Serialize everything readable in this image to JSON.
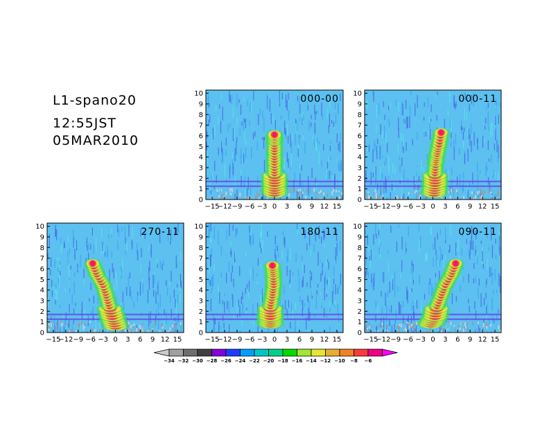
{
  "header": {
    "title": "L1-spano20",
    "time": "12:55JST",
    "date": "05MAR2010"
  },
  "chart_data": {
    "type": "heatmap",
    "x_ticks": [
      "-15",
      "-12",
      "-9",
      "-6",
      "-3",
      "0",
      "3",
      "6",
      "9",
      "12",
      "15"
    ],
    "y_ticks": [
      "0",
      "1",
      "2",
      "3",
      "4",
      "5",
      "6",
      "7",
      "8",
      "9",
      "10"
    ],
    "xlim": [
      -16.5,
      16.5
    ],
    "ylim": [
      0,
      10.3
    ],
    "grid": false,
    "panels": [
      {
        "label": "000-00",
        "plume": [
          [
            0,
            0.6
          ],
          [
            0,
            1.5
          ],
          [
            0,
            2.5
          ],
          [
            0,
            3.5
          ],
          [
            0,
            4.5
          ],
          [
            0,
            5.5
          ],
          [
            0,
            6.1
          ]
        ],
        "gap_y": [
          5.7
        ]
      },
      {
        "label": "000-11",
        "plume": [
          [
            0.3,
            0.6
          ],
          [
            0.5,
            1.5
          ],
          [
            0.5,
            2.5
          ],
          [
            0.7,
            3.5
          ],
          [
            1,
            4.3
          ],
          [
            1.5,
            5.2
          ],
          [
            2,
            6.3
          ]
        ],
        "gap_y": []
      },
      {
        "label": "270-11",
        "plume": [
          [
            0,
            0.6
          ],
          [
            -0.8,
            1.5
          ],
          [
            -1.5,
            2.5
          ],
          [
            -2.2,
            3.5
          ],
          [
            -3,
            4.5
          ],
          [
            -4.5,
            5.5
          ],
          [
            -5.5,
            6.5
          ]
        ],
        "gap_y": []
      },
      {
        "label": "180-11",
        "plume": [
          [
            -1,
            0.8
          ],
          [
            -1,
            1.5
          ],
          [
            -1,
            2.5
          ],
          [
            -0.5,
            3.5
          ],
          [
            -0.2,
            4.5
          ],
          [
            -0.3,
            5.5
          ],
          [
            -0.5,
            6.3
          ]
        ],
        "gap_y": []
      },
      {
        "label": "090-11",
        "plume": [
          [
            -0.5,
            0.8
          ],
          [
            0.5,
            1.5
          ],
          [
            1,
            2.5
          ],
          [
            2,
            3.5
          ],
          [
            3,
            4.5
          ],
          [
            4.5,
            5.5
          ],
          [
            5.5,
            6.5
          ]
        ],
        "gap_y": []
      }
    ],
    "colorbar": {
      "labels": [
        "-34",
        "-32",
        "-30",
        "-28",
        "-26",
        "-24",
        "-22",
        "-20",
        "-18",
        "-16",
        "-14",
        "-12",
        "-10",
        "-8",
        "-6"
      ],
      "colors": [
        "#a0a0a0",
        "#6e6e6e",
        "#404040",
        "#8200dc",
        "#1e3cff",
        "#00a0ff",
        "#00c8c8",
        "#00d28c",
        "#00dc00",
        "#a0e632",
        "#e6e632",
        "#e6af2d",
        "#f08228",
        "#fa3c3c",
        "#f00082"
      ],
      "end_low": "#cccccc",
      "end_high": "#ff00ff"
    },
    "palette": {
      "background": "#5cc0f0",
      "speckle_dark": "#4060e0",
      "speckle_mid": "#3aa0f0",
      "speckle_cyan": "#58e8e8",
      "band": "#6a3ce0",
      "plume_core": "#f0186c",
      "plume_mid": "#ff3c3c",
      "plume_warm": "#ffe632",
      "plume_green": "#40dc60"
    }
  }
}
